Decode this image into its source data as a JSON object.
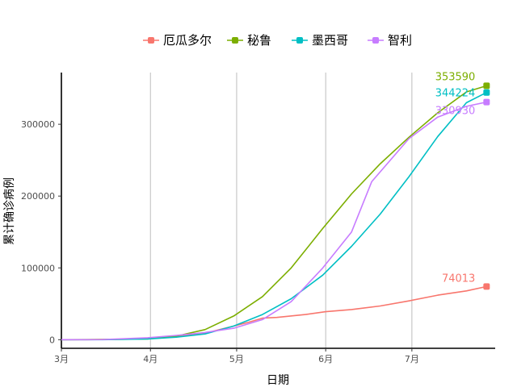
{
  "chart_data": {
    "type": "line",
    "xlabel": "日期",
    "ylabel": "累计确诊病例",
    "x_ticks": [
      "3月",
      "4月",
      "5月",
      "6月",
      "7月"
    ],
    "x_range": [
      "2020-03-01",
      "2020-07-30"
    ],
    "y_ticks": [
      0,
      100000,
      200000,
      300000
    ],
    "y_tick_labels": [
      "0",
      "100000",
      "200000",
      "300000"
    ],
    "ylim": [
      -12000,
      372000
    ],
    "grid": "vertical major lines only",
    "legend_position": "top",
    "series": [
      {
        "name": "厄瓜多尔",
        "color": "#F8766D",
        "end_label": "74013",
        "points": [
          [
            "2020-03-01",
            0
          ],
          [
            "2020-03-10",
            0
          ],
          [
            "2020-03-20",
            500
          ],
          [
            "2020-03-31",
            2000
          ],
          [
            "2020-04-10",
            5000
          ],
          [
            "2020-04-20",
            9000
          ],
          [
            "2020-04-30",
            19000
          ],
          [
            "2020-05-05",
            24000
          ],
          [
            "2020-05-10",
            30000
          ],
          [
            "2020-05-15",
            31000
          ],
          [
            "2020-05-25",
            35000
          ],
          [
            "2020-06-01",
            39000
          ],
          [
            "2020-06-10",
            42000
          ],
          [
            "2020-06-20",
            47000
          ],
          [
            "2020-06-30",
            54000
          ],
          [
            "2020-07-10",
            62000
          ],
          [
            "2020-07-20",
            68000
          ],
          [
            "2020-07-27",
            74013
          ]
        ]
      },
      {
        "name": "秘鲁",
        "color": "#7CAE00",
        "end_label": "353590",
        "points": [
          [
            "2020-03-01",
            0
          ],
          [
            "2020-03-15",
            200
          ],
          [
            "2020-03-31",
            1000
          ],
          [
            "2020-04-10",
            5000
          ],
          [
            "2020-04-20",
            14000
          ],
          [
            "2020-04-30",
            33000
          ],
          [
            "2020-05-10",
            60000
          ],
          [
            "2020-05-20",
            100000
          ],
          [
            "2020-05-31",
            155000
          ],
          [
            "2020-06-10",
            203000
          ],
          [
            "2020-06-20",
            245000
          ],
          [
            "2020-06-30",
            282000
          ],
          [
            "2020-07-10",
            316000
          ],
          [
            "2020-07-20",
            345000
          ],
          [
            "2020-07-27",
            353590
          ]
        ]
      },
      {
        "name": "墨西哥",
        "color": "#00BFC4",
        "end_label": "344224",
        "points": [
          [
            "2020-03-01",
            0
          ],
          [
            "2020-03-15",
            50
          ],
          [
            "2020-03-31",
            1000
          ],
          [
            "2020-04-10",
            3500
          ],
          [
            "2020-04-20",
            8000
          ],
          [
            "2020-04-30",
            19000
          ],
          [
            "2020-05-10",
            35000
          ],
          [
            "2020-05-20",
            57000
          ],
          [
            "2020-05-31",
            90000
          ],
          [
            "2020-06-10",
            130000
          ],
          [
            "2020-06-20",
            175000
          ],
          [
            "2020-06-30",
            227000
          ],
          [
            "2020-07-10",
            283000
          ],
          [
            "2020-07-20",
            330000
          ],
          [
            "2020-07-27",
            344224
          ]
        ]
      },
      {
        "name": "智利",
        "color": "#C77CFF",
        "end_label": "330930",
        "points": [
          [
            "2020-03-01",
            0
          ],
          [
            "2020-03-15",
            100
          ],
          [
            "2020-03-31",
            2700
          ],
          [
            "2020-04-10",
            6000
          ],
          [
            "2020-04-20",
            10000
          ],
          [
            "2020-04-30",
            16000
          ],
          [
            "2020-05-10",
            28000
          ],
          [
            "2020-05-20",
            53000
          ],
          [
            "2020-05-31",
            100000
          ],
          [
            "2020-06-10",
            150000
          ],
          [
            "2020-06-17",
            220000
          ],
          [
            "2020-06-30",
            280000
          ],
          [
            "2020-07-10",
            310000
          ],
          [
            "2020-07-20",
            325000
          ],
          [
            "2020-07-27",
            330930
          ]
        ]
      }
    ]
  }
}
